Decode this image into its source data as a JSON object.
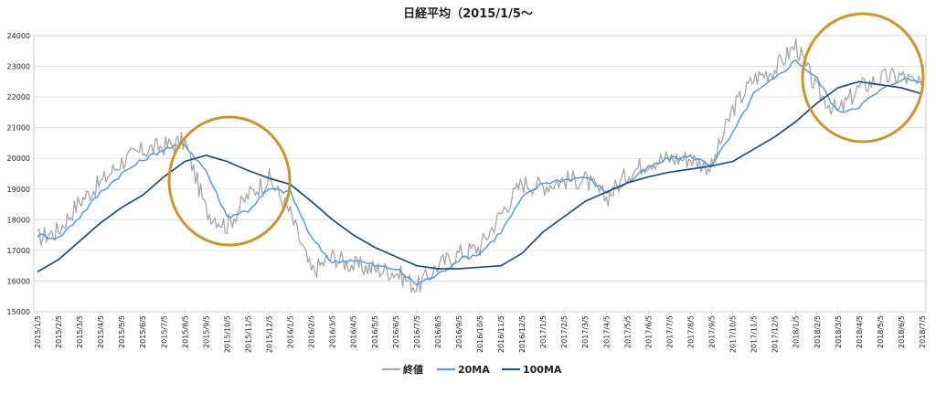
{
  "chart_data": {
    "type": "line",
    "title": "日経平均（2015/1/5～",
    "ylim": [
      15000,
      24000
    ],
    "yticks": [
      15000,
      16000,
      17000,
      18000,
      19000,
      20000,
      21000,
      22000,
      23000,
      24000
    ],
    "xticks": [
      "2015/1/5",
      "2015/2/5",
      "2015/3/5",
      "2015/4/5",
      "2015/5/5",
      "2015/6/5",
      "2015/7/5",
      "2015/8/5",
      "2015/9/5",
      "2015/10/5",
      "2015/11/5",
      "2015/12/5",
      "2016/1/5",
      "2016/2/5",
      "2016/3/5",
      "2016/4/5",
      "2016/5/5",
      "2016/6/5",
      "2016/7/5",
      "2016/8/5",
      "2016/9/5",
      "2016/10/5",
      "2016/11/5",
      "2016/12/5",
      "2017/1/5",
      "2017/2/5",
      "2017/3/5",
      "2017/4/5",
      "2017/5/5",
      "2017/6/5",
      "2017/7/5",
      "2017/8/5",
      "2017/9/5",
      "2017/10/5",
      "2017/11/5",
      "2017/12/5",
      "2018/1/5",
      "2018/2/5",
      "2018/3/5",
      "2018/4/5",
      "2018/5/5",
      "2018/6/5",
      "2018/7/5"
    ],
    "grid": true,
    "legend_position": "bottom",
    "series": [
      {
        "name": "終値",
        "color": "#a6a6a6",
        "values": [
          17400,
          17650,
          18600,
          19200,
          19900,
          20250,
          20400,
          20550,
          18300,
          17800,
          18800,
          19350,
          18200,
          16300,
          16800,
          16500,
          16400,
          16300,
          15800,
          16500,
          16900,
          17100,
          18200,
          19200,
          19100,
          19300,
          19300,
          18700,
          19500,
          19900,
          20000,
          20000,
          19700,
          21600,
          22600,
          22900,
          23700,
          22200,
          21500,
          22300,
          22600,
          22700,
          22300
        ]
      },
      {
        "name": "20MA",
        "color": "#5b9bd5",
        "values": [
          17500,
          17400,
          18100,
          18900,
          19500,
          19950,
          20300,
          20450,
          19600,
          18100,
          18300,
          19000,
          18900,
          17400,
          16600,
          16700,
          16500,
          16400,
          15900,
          16200,
          16700,
          16900,
          17600,
          18700,
          19200,
          19300,
          19400,
          18900,
          19200,
          19700,
          20000,
          20050,
          19800,
          20800,
          22100,
          22600,
          23200,
          22600,
          21500,
          21700,
          22200,
          22600,
          22500
        ]
      },
      {
        "name": "100MA",
        "color": "#1f4e79",
        "values": [
          16300,
          16700,
          17300,
          17900,
          18400,
          18800,
          19400,
          19900,
          20100,
          19900,
          19600,
          19350,
          19150,
          18600,
          18000,
          17500,
          17100,
          16800,
          16500,
          16400,
          16400,
          16450,
          16500,
          16900,
          17600,
          18100,
          18600,
          18900,
          19200,
          19400,
          19550,
          19650,
          19750,
          19900,
          20300,
          20700,
          21200,
          21800,
          22300,
          22500,
          22400,
          22300,
          22100
        ]
      }
    ]
  },
  "shapes": {
    "highlight_circle_color": "#c8962d"
  }
}
